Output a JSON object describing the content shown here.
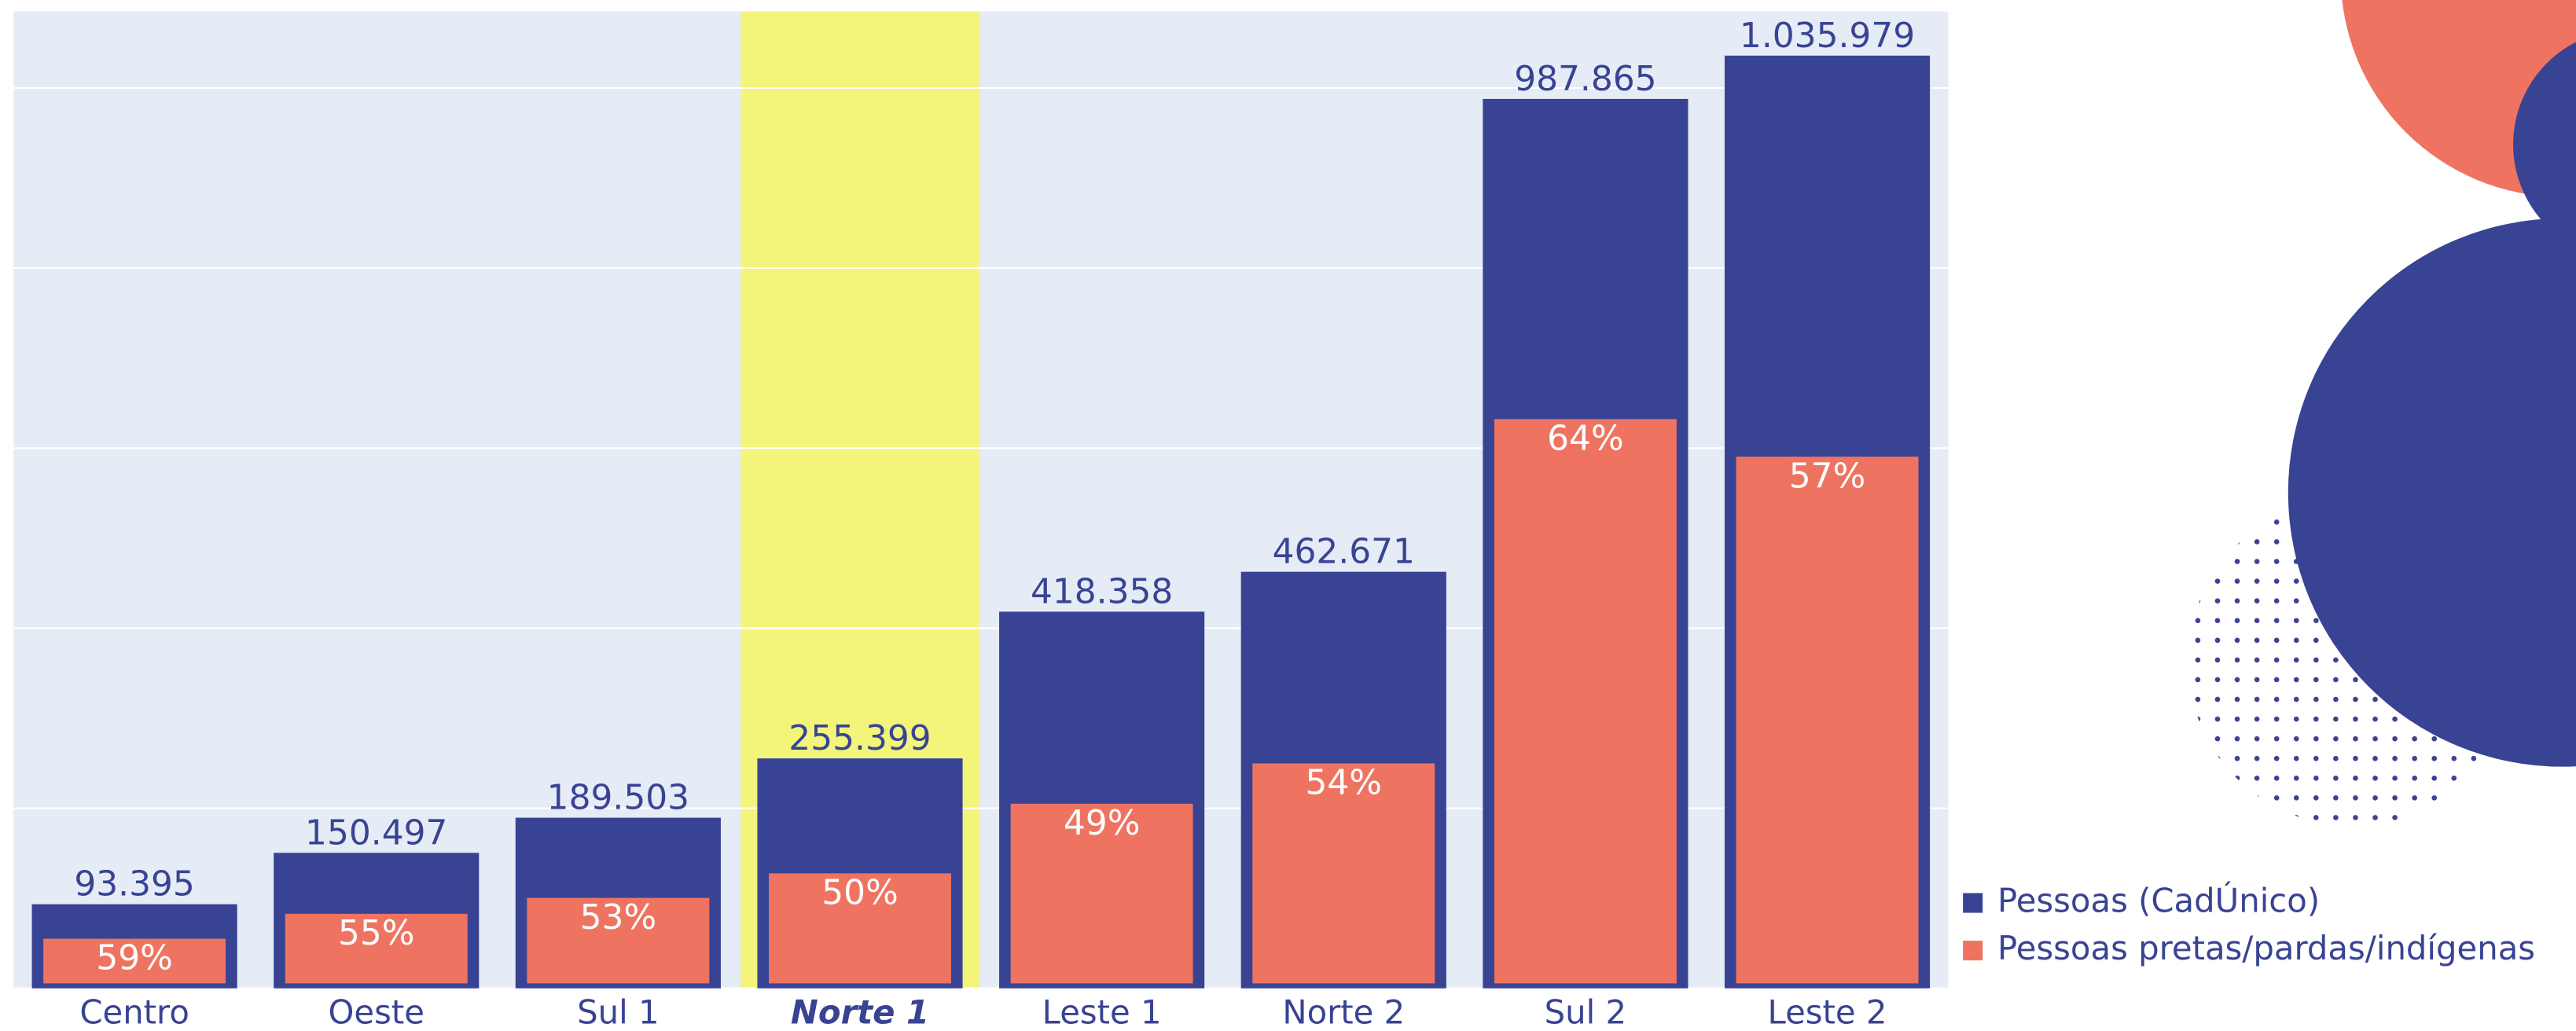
{
  "chart_data": {
    "type": "bar",
    "categories": [
      "Centro",
      "Oeste",
      "Sul 1",
      "Norte 1",
      "Leste 1",
      "Norte 2",
      "Sul 2",
      "Leste 2"
    ],
    "series": [
      {
        "name": "Pessoas (CadÚnico)",
        "color": "#394393",
        "values": [
          93395,
          150497,
          189503,
          255399,
          418358,
          462671,
          987865,
          1035979
        ],
        "value_labels": [
          "93.395",
          "150.497",
          "189.503",
          "255.399",
          "418.358",
          "462.671",
          "987.865",
          "1.035.979"
        ]
      },
      {
        "name": "Pessoas pretas/pardas/indígenas",
        "color": "#ee7461",
        "share_of": 0,
        "values": [
          59,
          55,
          53,
          50,
          49,
          54,
          64,
          57
        ],
        "value_labels": [
          "59%",
          "55%",
          "53%",
          "50%",
          "49%",
          "54%",
          "64%",
          "57%"
        ]
      }
    ],
    "ylim": [
      0,
      1085000
    ],
    "yticks": [
      0,
      200000,
      400000,
      600000,
      800000,
      1000000
    ],
    "grid": true,
    "highlight": 3,
    "highlight_color": "#f2f57a",
    "legend": "right-bottom"
  }
}
